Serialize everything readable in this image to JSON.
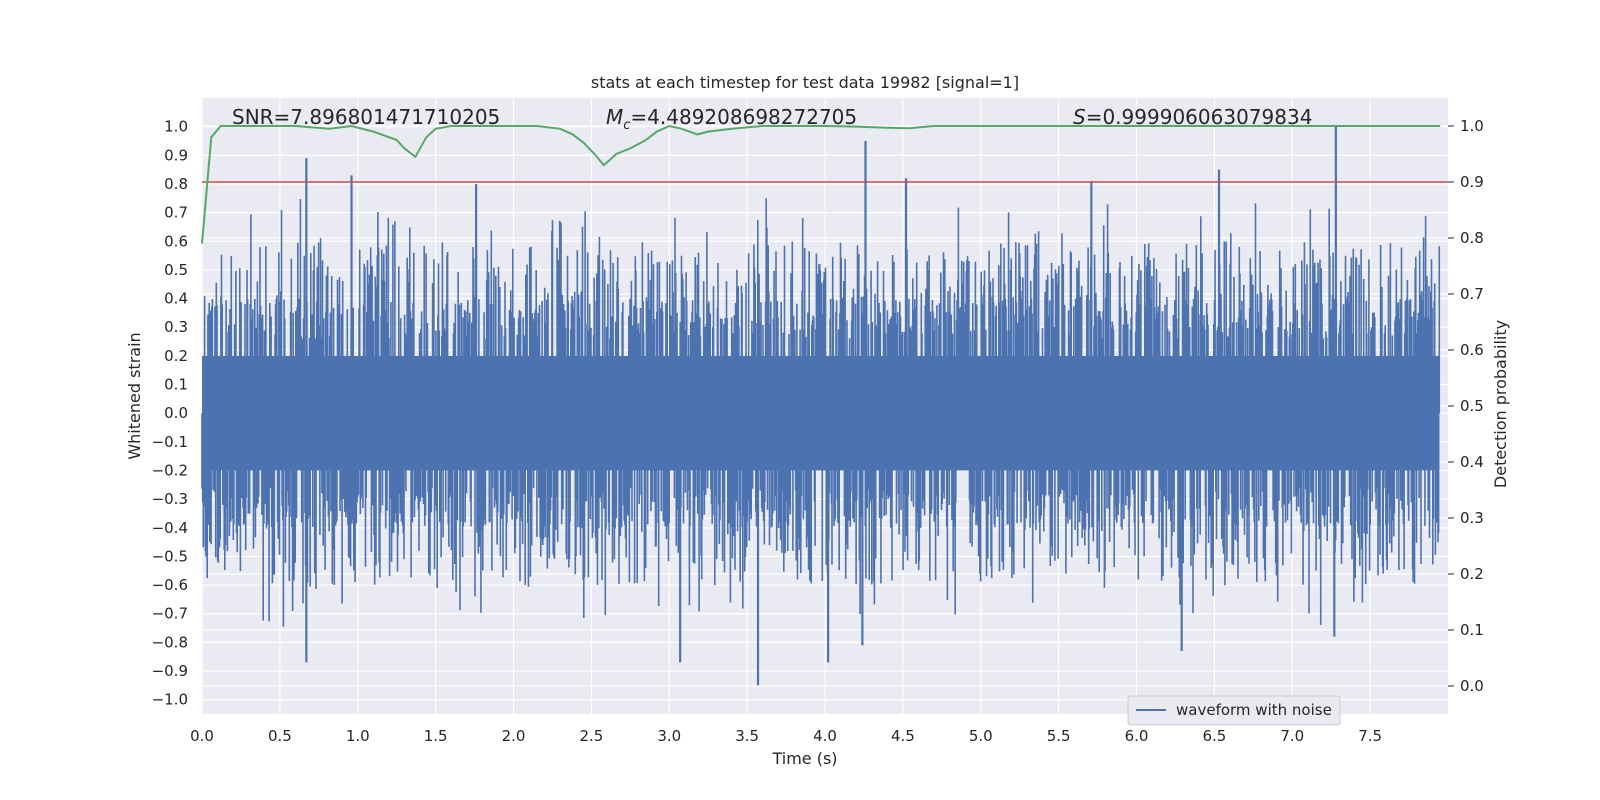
{
  "chart_data": {
    "type": "line",
    "title": "stats at each timestep for test data 19982 [signal=1]",
    "xlabel": "Time (s)",
    "ylabel_left": "Whitened strain",
    "ylabel_right": "Detection probability",
    "xlim": [
      0.0,
      8.0
    ],
    "ylim_left": [
      -1.05,
      1.1
    ],
    "ylim_right": [
      -0.05,
      1.05
    ],
    "x_ticks": [
      "0.0",
      "0.5",
      "1.0",
      "1.5",
      "2.0",
      "2.5",
      "3.0",
      "3.5",
      "4.0",
      "4.5",
      "5.0",
      "5.5",
      "6.0",
      "6.5",
      "7.0",
      "7.5"
    ],
    "y_ticks_left": [
      "1.0",
      "0.9",
      "0.8",
      "0.7",
      "0.6",
      "0.5",
      "0.4",
      "0.3",
      "0.2",
      "0.1",
      "0.0",
      "−0.1",
      "−0.2",
      "−0.3",
      "−0.4",
      "−0.5",
      "−0.6",
      "−0.7",
      "−0.8",
      "−0.9",
      "−1.0"
    ],
    "y_ticks_right": [
      "1.0",
      "0.9",
      "0.8",
      "0.7",
      "0.6",
      "0.5",
      "0.4",
      "0.3",
      "0.2",
      "0.1",
      "0.0"
    ],
    "annotations": {
      "snr": "SNR=7.896801471710205",
      "mc_symbol": "M",
      "mc_sub": "c",
      "mc_value": "=4.489208698272705",
      "s_symbol": "S",
      "s_value": "=0.999906063079834"
    },
    "threshold": {
      "axis": "right",
      "value": 0.9,
      "color": "#c44e52"
    },
    "legend": {
      "placement": "lower-right",
      "entries": [
        "waveform with noise"
      ]
    },
    "grid": true,
    "colors": {
      "waveform": "#4c72b0",
      "probability": "#55a868",
      "threshold": "#c44e52",
      "background": "#eaeaf2"
    },
    "waveform_peaks": [
      {
        "x": 0.67,
        "y": 0.89
      },
      {
        "x": 0.96,
        "y": 0.83
      },
      {
        "x": 1.76,
        "y": 0.8
      },
      {
        "x": 4.26,
        "y": 0.95
      },
      {
        "x": 4.52,
        "y": 0.82
      },
      {
        "x": 5.71,
        "y": 0.81
      },
      {
        "x": 6.53,
        "y": 0.85
      },
      {
        "x": 7.28,
        "y": 1.0
      },
      {
        "x": 0.67,
        "y": -0.87
      },
      {
        "x": 3.57,
        "y": -0.95
      },
      {
        "x": 3.07,
        "y": -0.87
      },
      {
        "x": 4.02,
        "y": -0.87
      },
      {
        "x": 4.24,
        "y": -0.81
      },
      {
        "x": 6.29,
        "y": -0.83
      },
      {
        "x": 7.27,
        "y": -0.78
      }
    ],
    "series": [
      {
        "name": "detection probability",
        "axis": "right",
        "x": [
          0.0,
          0.06,
          0.12,
          0.3,
          0.6,
          0.82,
          0.96,
          1.1,
          1.25,
          1.3,
          1.37,
          1.44,
          1.5,
          1.6,
          1.8,
          2.0,
          2.15,
          2.3,
          2.38,
          2.45,
          2.52,
          2.58,
          2.66,
          2.75,
          2.85,
          2.92,
          3.0,
          3.08,
          3.18,
          3.25,
          3.4,
          3.6,
          3.8,
          4.0,
          4.2,
          4.4,
          4.54,
          4.7,
          5.0,
          5.5,
          6.0,
          6.5,
          7.0,
          7.5,
          7.95
        ],
        "y": [
          0.79,
          0.98,
          1.0,
          1.0,
          1.0,
          0.995,
          1.0,
          0.99,
          0.975,
          0.96,
          0.945,
          0.98,
          0.995,
          1.0,
          1.0,
          1.0,
          1.0,
          0.995,
          0.985,
          0.97,
          0.95,
          0.93,
          0.95,
          0.96,
          0.975,
          0.99,
          1.0,
          0.995,
          0.985,
          0.99,
          0.995,
          1.0,
          1.0,
          1.0,
          0.999,
          0.997,
          0.996,
          1.0,
          1.0,
          1.0,
          1.0,
          1.0,
          1.0,
          1.0,
          1.0
        ]
      }
    ]
  }
}
